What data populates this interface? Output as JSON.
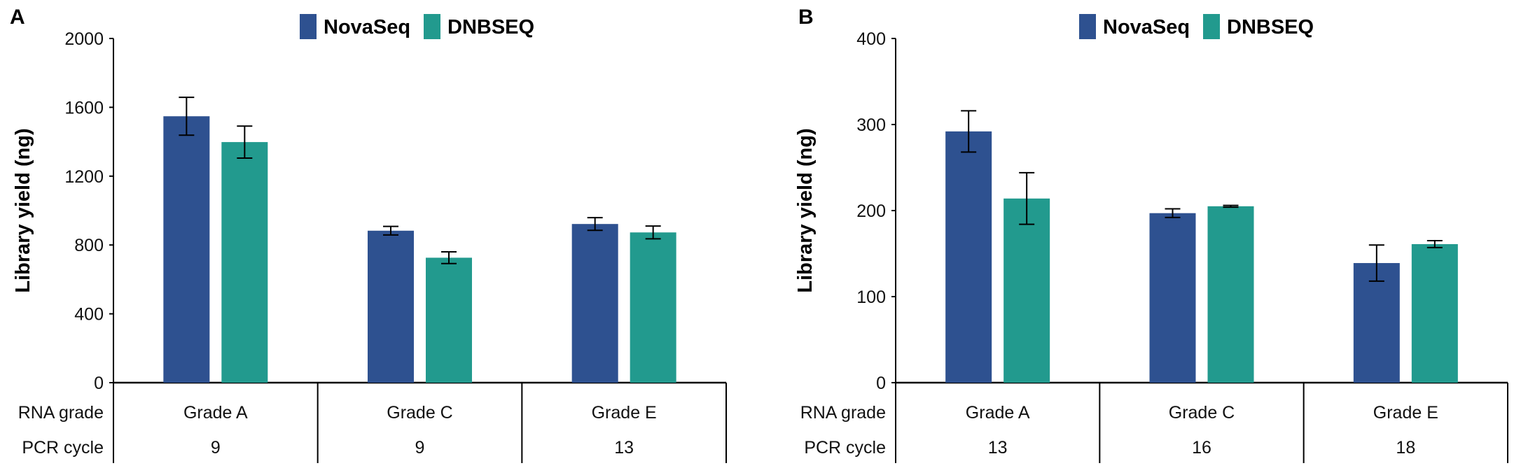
{
  "colors": {
    "NovaSeq": "#2E5190",
    "DNBSEQ": "#229A8E"
  },
  "chart_data": [
    {
      "type": "bar",
      "panel_label": "A",
      "ylabel": "Library yield (ng)",
      "ylim": [
        0,
        2000
      ],
      "yticks": [
        0,
        400,
        800,
        1200,
        1600,
        2000
      ],
      "categories": [
        "Grade A",
        "Grade C",
        "Grade E"
      ],
      "legend_position": "top",
      "table_rows": [
        {
          "label": "RNA grade",
          "values": [
            "Grade A",
            "Grade C",
            "Grade E"
          ]
        },
        {
          "label": "PCR cycle",
          "values": [
            "9",
            "9",
            "13"
          ]
        }
      ],
      "series": [
        {
          "name": "NovaSeq",
          "values": [
            1548,
            883,
            922
          ],
          "errors": [
            110,
            25,
            37
          ]
        },
        {
          "name": "DNBSEQ",
          "values": [
            1398,
            726,
            873
          ],
          "errors": [
            93,
            34,
            37
          ]
        }
      ]
    },
    {
      "type": "bar",
      "panel_label": "B",
      "ylabel": "Library yield (ng)",
      "ylim": [
        0,
        400
      ],
      "yticks": [
        0,
        100,
        200,
        300,
        400
      ],
      "categories": [
        "Grade A",
        "Grade C",
        "Grade E"
      ],
      "legend_position": "top",
      "table_rows": [
        {
          "label": "RNA grade",
          "values": [
            "Grade A",
            "Grade C",
            "Grade E"
          ]
        },
        {
          "label": "PCR cycle",
          "values": [
            "13",
            "16",
            "18"
          ]
        }
      ],
      "series": [
        {
          "name": "NovaSeq",
          "values": [
            292,
            197,
            139
          ],
          "errors": [
            24,
            5,
            21
          ]
        },
        {
          "name": "DNBSEQ",
          "values": [
            214,
            205,
            161
          ],
          "errors": [
            30,
            1,
            4
          ]
        }
      ]
    }
  ]
}
